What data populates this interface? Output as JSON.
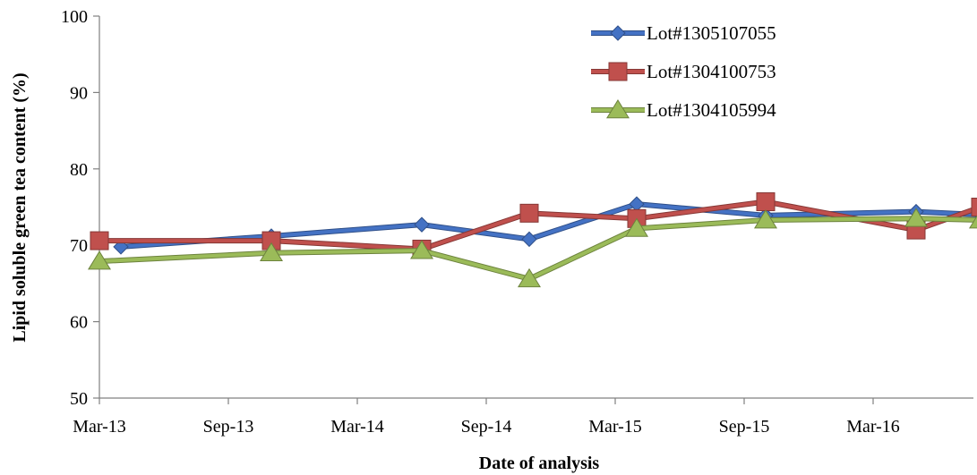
{
  "chart_data": {
    "type": "line",
    "title": "",
    "xlabel": "Date of analysis",
    "ylabel": "Lipid soluble green tea content (%)",
    "ylim": [
      50,
      100
    ],
    "y_ticks": [
      50,
      60,
      70,
      80,
      90,
      100
    ],
    "x_ticks": [
      "Mar-13",
      "Sep-13",
      "Mar-14",
      "Sep-14",
      "Mar-15",
      "Sep-15",
      "Mar-16"
    ],
    "xlim": [
      "2013-03",
      "2016-09"
    ],
    "grid": false,
    "legend_position": "top-right",
    "series": [
      {
        "name": "Lot#1305107055",
        "color": "#4472C4",
        "marker": "diamond",
        "points": [
          {
            "x": "2013-04",
            "y": 69.8
          },
          {
            "x": "2013-11",
            "y": 71.2
          },
          {
            "x": "2014-06",
            "y": 72.7
          },
          {
            "x": "2014-11",
            "y": 70.8
          },
          {
            "x": "2015-04",
            "y": 75.4
          },
          {
            "x": "2015-10",
            "y": 73.9
          },
          {
            "x": "2016-05",
            "y": 74.4
          },
          {
            "x": "2016-08",
            "y": 74.0
          }
        ]
      },
      {
        "name": "Lot#1304100753",
        "color": "#C0504D",
        "marker": "square",
        "points": [
          {
            "x": "2013-03",
            "y": 70.6
          },
          {
            "x": "2013-11",
            "y": 70.6
          },
          {
            "x": "2014-06",
            "y": 69.5
          },
          {
            "x": "2014-11",
            "y": 74.2
          },
          {
            "x": "2015-04",
            "y": 73.5
          },
          {
            "x": "2015-10",
            "y": 75.7
          },
          {
            "x": "2016-05",
            "y": 72.0
          },
          {
            "x": "2016-08",
            "y": 75.0
          }
        ]
      },
      {
        "name": "Lot#1304105994",
        "color": "#9BBB59",
        "marker": "triangle",
        "points": [
          {
            "x": "2013-03",
            "y": 67.9
          },
          {
            "x": "2013-11",
            "y": 69.0
          },
          {
            "x": "2014-06",
            "y": 69.3
          },
          {
            "x": "2014-11",
            "y": 65.6
          },
          {
            "x": "2015-04",
            "y": 72.2
          },
          {
            "x": "2015-10",
            "y": 73.3
          },
          {
            "x": "2016-05",
            "y": 73.5
          },
          {
            "x": "2016-08",
            "y": 73.3
          }
        ]
      }
    ]
  }
}
